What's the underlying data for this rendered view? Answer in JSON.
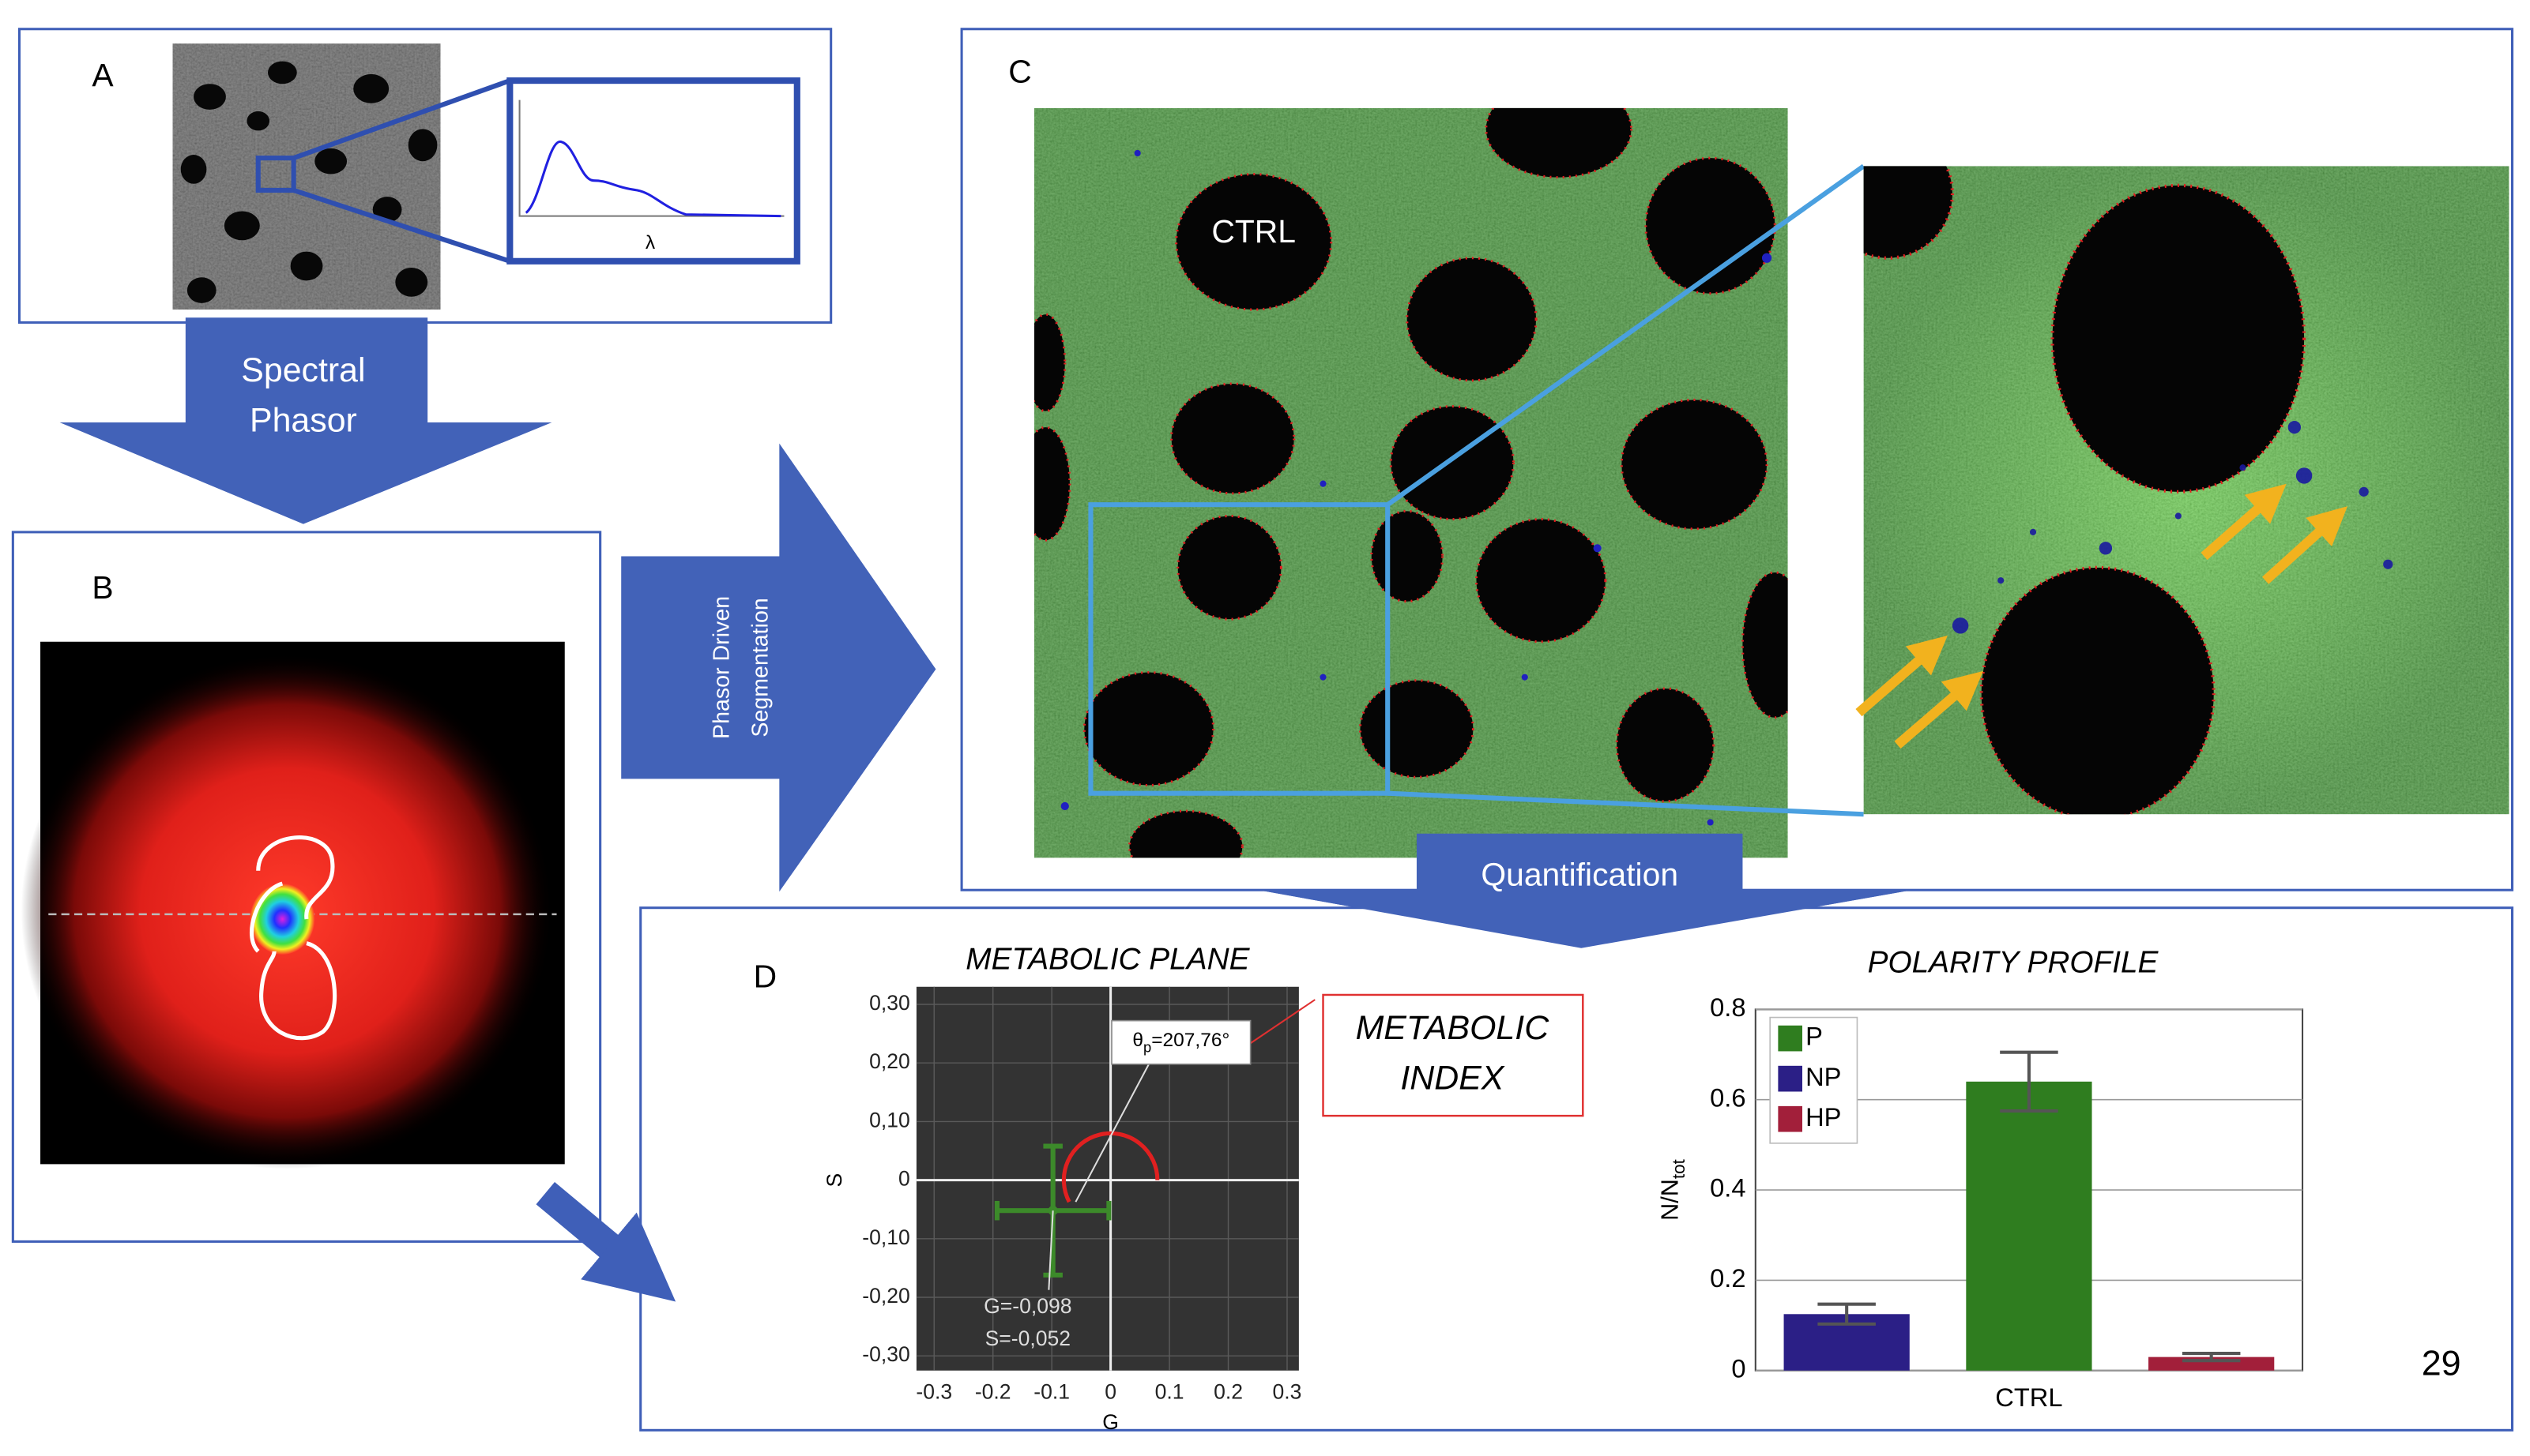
{
  "panels": {
    "a": {
      "label": "A",
      "axis_label": "λ"
    },
    "b": {
      "label": "B"
    },
    "c": {
      "label": "C",
      "image_label": "CTRL"
    },
    "d": {
      "label": "D"
    }
  },
  "arrows": {
    "spectral_phasor": [
      "Spectral",
      "Phasor"
    ],
    "segmentation": [
      "Phasor Driven",
      "Segmentation"
    ],
    "quantification": "Quantification"
  },
  "index_box": [
    "METABOLIC",
    "INDEX"
  ],
  "page_number": "29",
  "chart_data": [
    {
      "type": "scatter",
      "title": "METABOLIC PLANE",
      "x_label": "G",
      "y_label": "S",
      "x": [
        -0.098
      ],
      "y": [
        -0.052
      ],
      "x_err": [
        0.095
      ],
      "y_err": [
        0.11
      ],
      "x_value_labels": [
        "G=-0,098"
      ],
      "y_value_labels": [
        "S=-0,052"
      ],
      "angle": {
        "symbol": "θ",
        "subscript": "p",
        "values": [
          207.76
        ],
        "value_labels": [
          "=207,76°"
        ]
      },
      "color": "#3c8a2a",
      "angle_color": "#e02020",
      "xlim": [
        -0.33,
        0.32
      ],
      "ylim": [
        -0.325,
        0.33
      ],
      "xticks": [
        -0.3,
        -0.2,
        -0.1,
        0,
        0.1,
        0.2,
        0.3
      ],
      "yticks": [
        {
          "value": 0.3,
          "label": "0,30"
        },
        {
          "value": 0.2,
          "label": "0,20"
        },
        {
          "value": 0.1,
          "label": "0,10"
        },
        0,
        {
          "value": -0.1,
          "label": "-0,10"
        },
        {
          "value": -0.2,
          "label": "-0,20"
        },
        {
          "value": -0.3,
          "label": "-0,30"
        }
      ],
      "grid": true
    },
    {
      "type": "bar",
      "title": "POLARITY PROFILE",
      "y_label": "N/N",
      "y_label_subscript": "tot",
      "categories": [
        "CTRL"
      ],
      "series": [
        {
          "name": "P",
          "color": "#2f7d1f",
          "values": [
            0.64
          ],
          "errors": [
            0.065
          ]
        },
        {
          "name": "NP",
          "color": "#2b1f86",
          "values": [
            0.125
          ],
          "errors": [
            0.022
          ]
        },
        {
          "name": "HP",
          "color": "#a21f3a",
          "values": [
            0.03
          ],
          "errors": [
            0.008
          ]
        }
      ],
      "ylim": [
        0,
        0.8
      ],
      "yticks": [
        0,
        0.2,
        0.4,
        0.6,
        0.8
      ],
      "grid": true,
      "legend": "top-left"
    }
  ]
}
